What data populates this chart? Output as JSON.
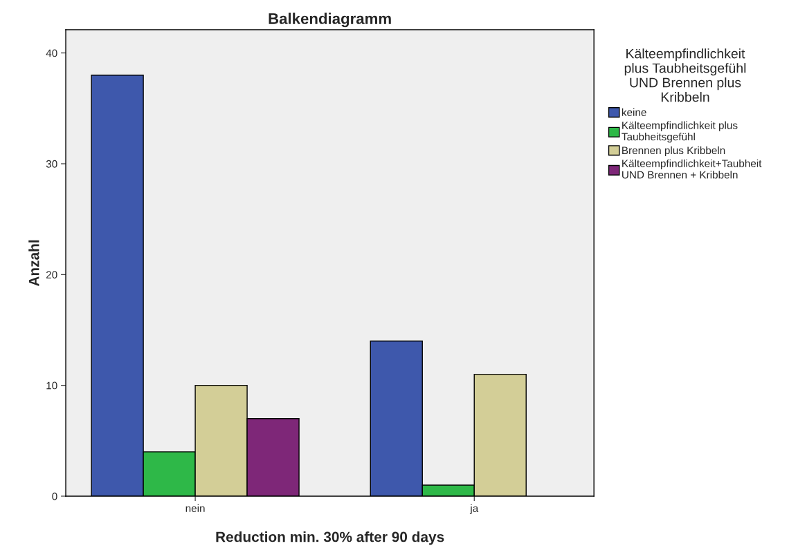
{
  "chart_data": {
    "type": "bar",
    "title": "Balkendiagramm",
    "xlabel": "Reduction min. 30% after 90 days",
    "ylabel": "Anzahl",
    "legend_title": "Kälteempfindlichkeit\nplus Taubheitsgefühl\nUND Brennen plus\nKribbeln",
    "categories": [
      "nein",
      "ja"
    ],
    "series": [
      {
        "name": "keine",
        "color": "#3e58ac",
        "values": [
          38,
          14
        ]
      },
      {
        "name": "Kälteempfindlichkeit plus\nTaubheitsgefühl",
        "color": "#2eb848",
        "values": [
          4,
          1
        ]
      },
      {
        "name": "Brennen plus Kribbeln",
        "color": "#d3ce97",
        "values": [
          10,
          11
        ]
      },
      {
        "name": "Kälteempfindlichkeit+Taubheit\nUND Brennen + Kribbeln",
        "color": "#7e2778",
        "values": [
          7,
          null
        ]
      }
    ],
    "ylim": [
      0,
      42.1
    ],
    "yticks": [
      0,
      10,
      20,
      30,
      40
    ],
    "grid": false,
    "legend": "right"
  }
}
